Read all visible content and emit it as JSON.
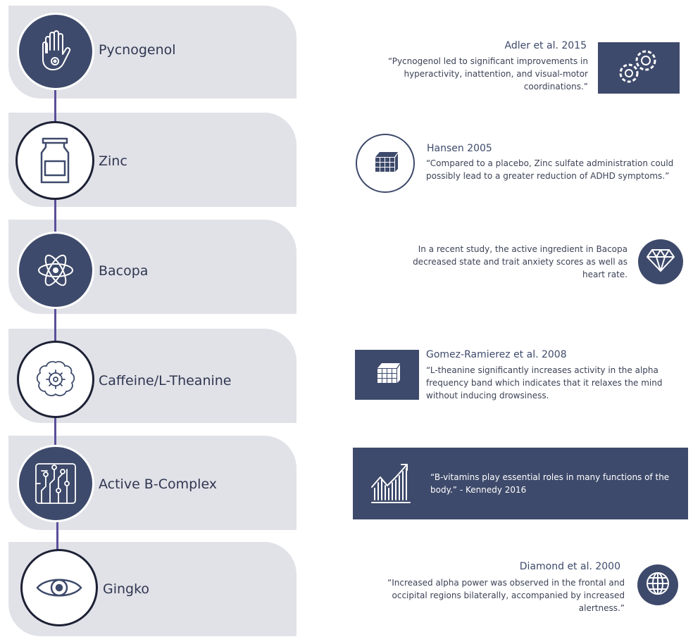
{
  "items": [
    {
      "label": "Pycnogenol",
      "icon": "hand-icon"
    },
    {
      "label": "Zinc",
      "icon": "bottle-icon"
    },
    {
      "label": "Bacopa",
      "icon": "atom-icon"
    },
    {
      "label": "Caffeine/L-Theanine",
      "icon": "brain-gear-icon"
    },
    {
      "label": "Active B-Complex",
      "icon": "circuit-icon"
    },
    {
      "label": "Gingko",
      "icon": "eye-icon"
    }
  ],
  "references": [
    {
      "title": "Adler et al. 2015",
      "text_lines": [
        "“Pycnogenol led to significant improvements in",
        "hyperactivity, inattention, and visual-motor",
        "coordinations.”"
      ],
      "icon": "gears-icon"
    },
    {
      "title": "Hansen 2005",
      "text_lines": [
        "“Compared to a placebo, Zinc sulfate administration could",
        "possibly lead to a greater reduction of ADHD symptoms.”"
      ],
      "icon": "cube-icon"
    },
    {
      "title": "",
      "text_lines": [
        "In a recent study, the active ingredient in Bacopa",
        "decreased state and trait anxiety scores as well as",
        "heart rate."
      ],
      "icon": "diamond-icon"
    },
    {
      "title": "Gomez-Ramierez et al. 2008",
      "text_lines": [
        "“L-theanine significantly increases activity in the alpha",
        "frequency band which indicates that it relaxes the mind",
        "without inducing drowsiness."
      ],
      "icon": "cube-icon"
    },
    {
      "title": "",
      "text_lines": [
        "“B-vitamins play essential roles in many functions of the",
        "body.” - Kennedy 2016"
      ],
      "icon": "growth-chart-icon"
    },
    {
      "title": "Diamond et al. 2000",
      "text_lines": [
        "“Increased alpha power was observed in the frontal and",
        "occipital regions bilaterally, accompanied by increased",
        "alertness.”"
      ],
      "icon": "globe-icon"
    }
  ],
  "colors": {
    "navy": "#3e4a6b",
    "card": "#e1e2e8",
    "connector": "#5a4e9a"
  }
}
